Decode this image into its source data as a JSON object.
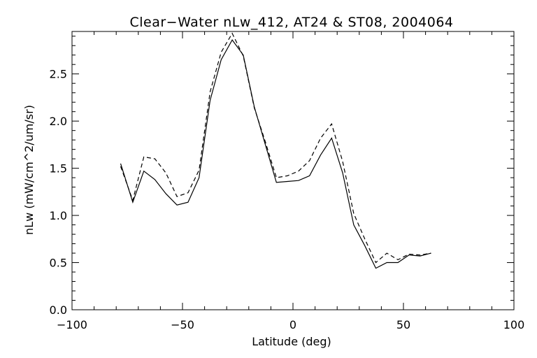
{
  "chart_data": {
    "type": "line",
    "title": "Clear−Water nLw_412, AT24 & ST08, 2004064",
    "xlabel": "Latitude (deg)",
    "ylabel": "nLw (mW/cm^2/um/sr)",
    "xlim": [
      -100,
      100
    ],
    "ylim": [
      0.0,
      2.95
    ],
    "x_ticks": [
      -100,
      -50,
      0,
      50,
      100
    ],
    "x_tick_labels": [
      "−100",
      "−50",
      "0",
      "50",
      "100"
    ],
    "y_ticks": [
      0.0,
      0.5,
      1.0,
      1.5,
      2.0,
      2.5
    ],
    "y_tick_labels": [
      "0.0",
      "0.5",
      "1.0",
      "1.5",
      "2.0",
      "2.5"
    ],
    "grid": false,
    "legend": "none",
    "series": [
      {
        "style": "solid",
        "color": "#000000",
        "x": [
          -78,
          -72.5,
          -67.5,
          -62.5,
          -57.5,
          -52.5,
          -47.5,
          -42.5,
          -37.5,
          -32.5,
          -27.5,
          -22.5,
          -17.5,
          -12.5,
          -7.5,
          -2.5,
          2.5,
          7.5,
          12.5,
          17.5,
          22.5,
          27.5,
          32.5,
          37.5,
          42.5,
          47.5,
          52.5,
          57.5,
          62.5
        ],
        "y": [
          1.55,
          1.14,
          1.47,
          1.38,
          1.23,
          1.11,
          1.14,
          1.4,
          2.22,
          2.65,
          2.86,
          2.7,
          2.15,
          1.75,
          1.35,
          1.36,
          1.37,
          1.42,
          1.64,
          1.82,
          1.45,
          0.9,
          0.68,
          0.44,
          0.5,
          0.5,
          0.58,
          0.57,
          0.6
        ]
      },
      {
        "style": "dashed",
        "color": "#000000",
        "x": [
          -78,
          -72.5,
          -67.5,
          -62.5,
          -57.5,
          -52.5,
          -47.5,
          -42.5,
          -37.5,
          -32.5,
          -27.5,
          -22.5,
          -17.5,
          -12.5,
          -7.5,
          -2.5,
          2.5,
          7.5,
          12.5,
          17.5,
          22.5,
          27.5,
          32.5,
          37.5,
          42.5,
          47.5,
          52.5,
          57.5,
          62.5
        ],
        "y": [
          1.52,
          1.16,
          1.62,
          1.6,
          1.45,
          1.2,
          1.24,
          1.48,
          2.31,
          2.73,
          2.93,
          2.69,
          2.14,
          1.78,
          1.4,
          1.42,
          1.47,
          1.58,
          1.82,
          1.97,
          1.57,
          1.02,
          0.75,
          0.5,
          0.6,
          0.53,
          0.59,
          0.58,
          0.6
        ]
      }
    ]
  }
}
